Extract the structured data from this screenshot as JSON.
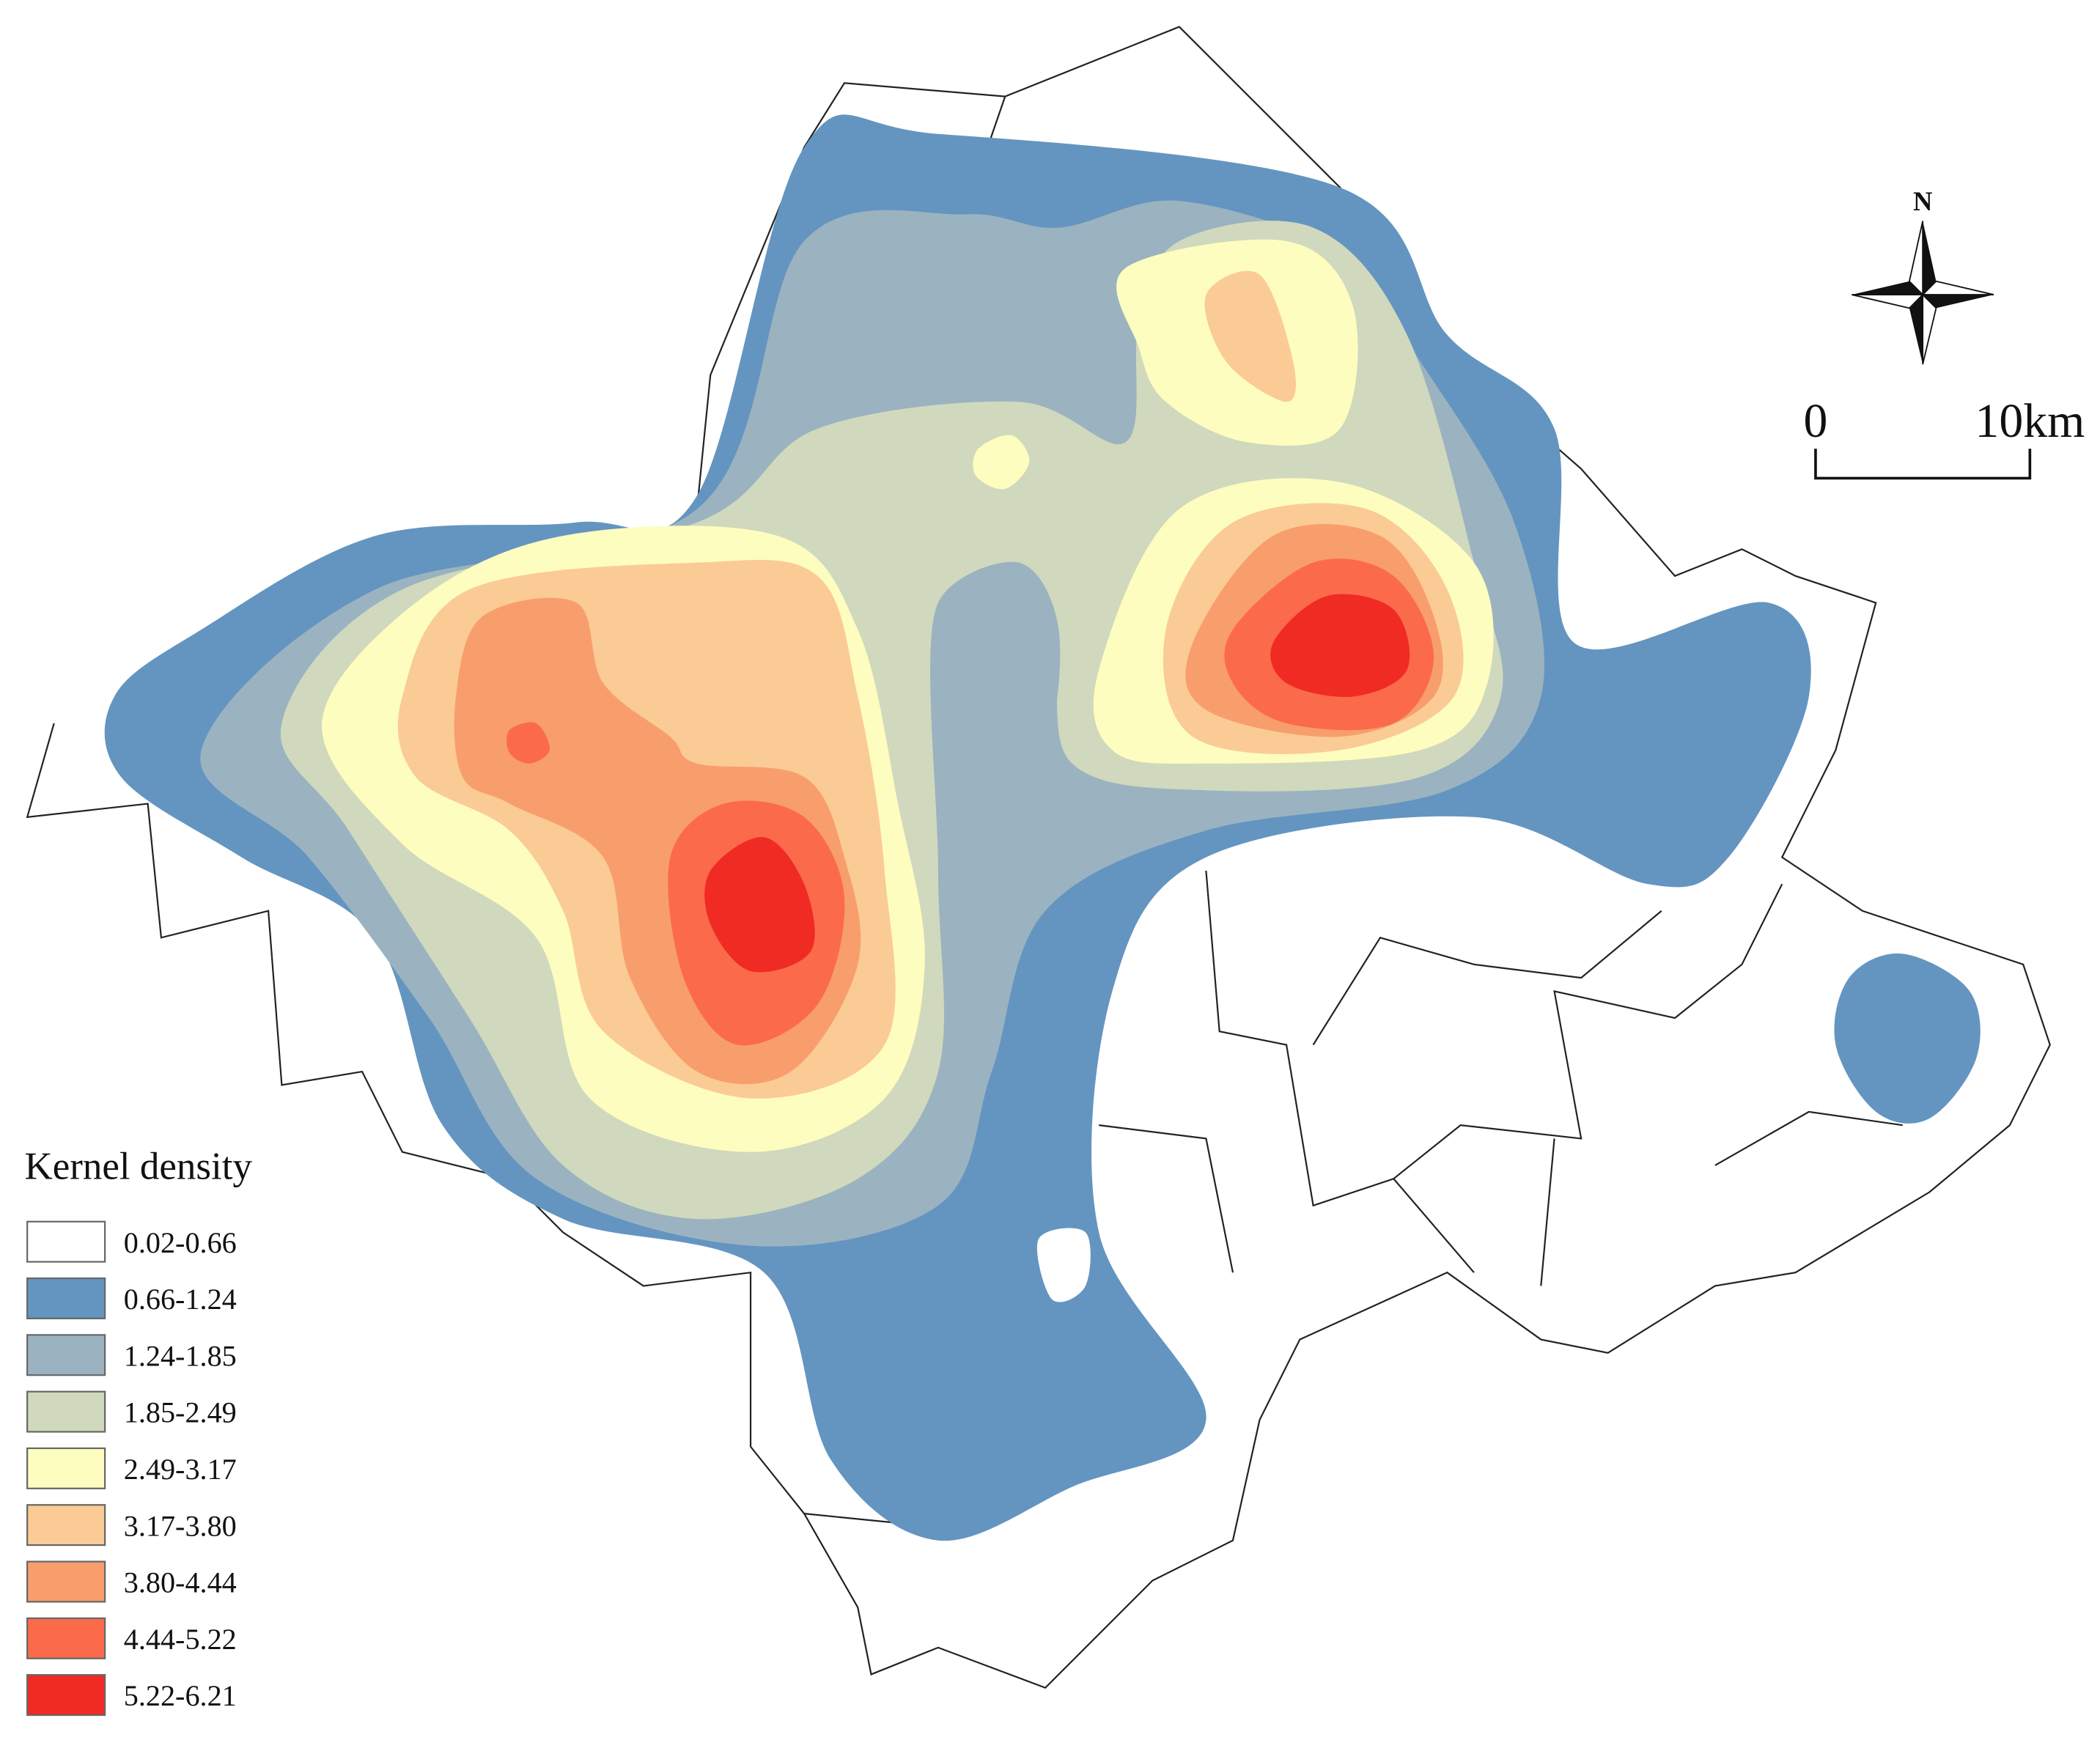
{
  "legend": {
    "title": "Kernel density",
    "items": [
      {
        "label": "0.02-0.66",
        "color": "#ffffff"
      },
      {
        "label": "0.66-1.24",
        "color": "#6495c0"
      },
      {
        "label": "1.24-1.85",
        "color": "#9bb3c0"
      },
      {
        "label": "1.85-2.49",
        "color": "#d0d9bd"
      },
      {
        "label": "2.49-3.17",
        "color": "#fefdc0"
      },
      {
        "label": "3.17-3.80",
        "color": "#fbcb95"
      },
      {
        "label": "3.80-4.44",
        "color": "#f89e6d"
      },
      {
        "label": "4.44-5.22",
        "color": "#fb6b4b"
      },
      {
        "label": "5.22-6.21",
        "color": "#f02b23"
      }
    ]
  },
  "north_arrow": {
    "label": "N"
  },
  "scale_bar": {
    "labels": [
      "0",
      "10km"
    ]
  }
}
